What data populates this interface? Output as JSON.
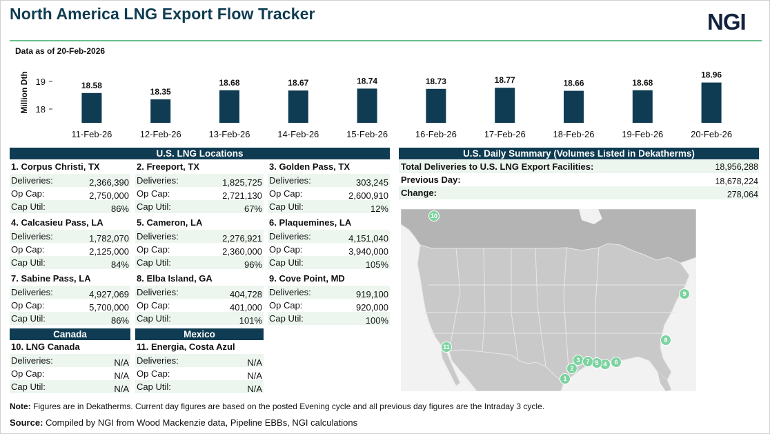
{
  "header": {
    "title": "North America LNG Export Flow Tracker",
    "logo": "NGI",
    "as_of": "Data as of 20-Feb-2026"
  },
  "chart_data": {
    "type": "bar",
    "ylabel": "Million Dth",
    "ylim": [
      17.5,
      19.3
    ],
    "yticks": [
      18,
      19
    ],
    "categories": [
      "11-Feb-26",
      "12-Feb-26",
      "13-Feb-26",
      "14-Feb-26",
      "15-Feb-26",
      "16-Feb-26",
      "17-Feb-26",
      "18-Feb-26",
      "19-Feb-26",
      "20-Feb-26"
    ],
    "values": [
      18.58,
      18.35,
      18.68,
      18.67,
      18.74,
      18.73,
      18.77,
      18.66,
      18.68,
      18.96
    ],
    "data_labels": [
      "18.58",
      "18.35",
      "18.68",
      "18.67",
      "18.74",
      "18.73",
      "18.77",
      "18.66",
      "18.68",
      "18.96"
    ],
    "bar_color": "#0f3c52",
    "grid": false,
    "legend": "none"
  },
  "us_locations": {
    "title": "U.S. LNG Locations",
    "labels": {
      "deliveries": "Deliveries:",
      "op_cap": "Op Cap:",
      "cap_util": "Cap Util:"
    },
    "items": [
      {
        "name": "1. Corpus Christi, TX",
        "deliveries": "2,366,390",
        "op_cap": "2,750,000",
        "cap_util": "86%"
      },
      {
        "name": "2. Freeport, TX",
        "deliveries": "1,825,725",
        "op_cap": "2,721,130",
        "cap_util": "67%"
      },
      {
        "name": "3. Golden Pass, TX",
        "deliveries": "303,245",
        "op_cap": "2,600,910",
        "cap_util": "12%"
      },
      {
        "name": "4. Calcasieu Pass, LA",
        "deliveries": "1,782,070",
        "op_cap": "2,125,000",
        "cap_util": "84%"
      },
      {
        "name": "5. Cameron, LA",
        "deliveries": "2,276,921",
        "op_cap": "2,360,000",
        "cap_util": "96%"
      },
      {
        "name": "6. Plaquemines, LA",
        "deliveries": "4,151,040",
        "op_cap": "3,940,000",
        "cap_util": "105%"
      },
      {
        "name": "7. Sabine Pass, LA",
        "deliveries": "4,927,069",
        "op_cap": "5,700,000",
        "cap_util": "86%"
      },
      {
        "name": "8. Elba Island, GA",
        "deliveries": "404,728",
        "op_cap": "401,000",
        "cap_util": "101%"
      },
      {
        "name": "9. Cove Point, MD",
        "deliveries": "919,100",
        "op_cap": "920,000",
        "cap_util": "100%"
      }
    ]
  },
  "canada": {
    "title": "Canada",
    "name": "10. LNG Canada",
    "deliveries": "N/A",
    "op_cap": "N/A",
    "cap_util": "N/A"
  },
  "mexico": {
    "title": "Mexico",
    "name": "11. Energia, Costa Azul",
    "deliveries": "N/A",
    "op_cap": "N/A",
    "cap_util": "N/A"
  },
  "summary": {
    "title": "U.S. Daily Summary (Volumes Listed in Dekatherms)",
    "total_label": "Total Deliveries to U.S. LNG Export Facilities:",
    "total_value": "18,956,288",
    "previous_label": "Previous Day:",
    "previous_value": "18,678,224",
    "change_label": "Change:",
    "change_value": "278,064"
  },
  "map": {
    "markers": [
      "1",
      "2",
      "3",
      "4",
      "5",
      "6",
      "7",
      "8",
      "9",
      "10",
      "11"
    ],
    "land_color": "#c9c9c9",
    "water_color": "#f3f3f3",
    "marker_color": "#7dd3a0"
  },
  "footer": {
    "note_label": "Note:",
    "note_text": " Figures are in Dekatherms.  Current day figures are based on the posted  Evening cycle and all previous day figures are the Intraday 3 cycle.",
    "source_label": "Source:",
    "source_text": "  Compiled by NGI from Wood Mackenzie data, Pipeline EBBs, NGI calculations"
  }
}
